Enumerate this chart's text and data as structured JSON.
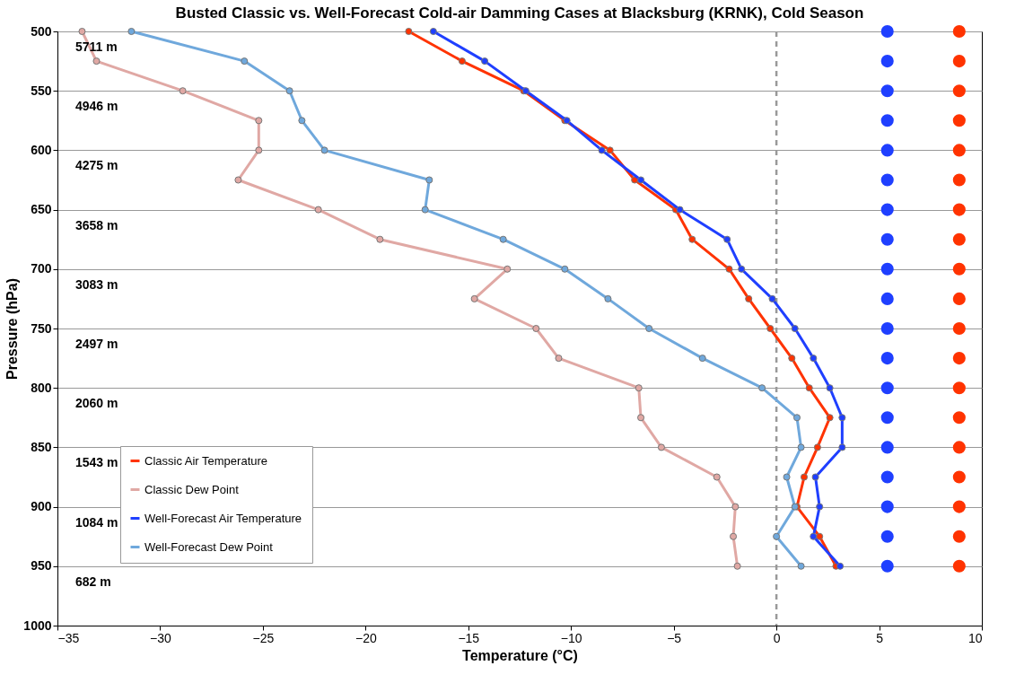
{
  "chart_data": {
    "type": "line",
    "title": "Busted Classic vs. Well-Forecast Cold-air Damming Cases at Blacksburg (KRNK), Cold Season",
    "xlabel": "Temperature (°C)",
    "ylabel": "Pressure (hPa)",
    "xlim": [
      -35,
      10
    ],
    "xticks": [
      -35,
      -30,
      -25,
      -20,
      -15,
      -10,
      -5,
      0,
      5,
      10
    ],
    "ylim": [
      1000,
      500
    ],
    "yticks": [
      500,
      550,
      600,
      650,
      700,
      750,
      800,
      850,
      900,
      950,
      1000
    ],
    "grid": "y",
    "legend": "bottom left",
    "marker": "circle",
    "line_style": "solid",
    "series": [
      {
        "name": "Classic Air Temperature",
        "color": "#ff3300",
        "x": [
          -17.9,
          -15.3,
          -12.3,
          -10.3,
          -8.1,
          -6.9,
          -4.9,
          -4.1,
          -2.3,
          -1.35,
          -0.3,
          0.75,
          1.6,
          2.6,
          2.0,
          1.35,
          1.0,
          2.1,
          2.9
        ],
        "values": [
          500,
          525,
          550,
          575,
          600,
          625,
          650,
          675,
          700,
          725,
          750,
          775,
          800,
          825,
          850,
          875,
          900,
          925,
          950
        ]
      },
      {
        "name": "Classic Dew Point",
        "color": "#e0a8a4",
        "x": [
          -33.8,
          -33.1,
          -28.9,
          -25.2,
          -25.2,
          -26.2,
          -22.3,
          -19.3,
          -13.1,
          -14.7,
          -11.7,
          -10.6,
          -6.7,
          -6.6,
          -5.6,
          -2.9,
          -2.0,
          -2.1,
          -1.9
        ],
        "values": [
          500,
          525,
          550,
          575,
          600,
          625,
          650,
          675,
          700,
          725,
          750,
          775,
          800,
          825,
          850,
          875,
          900,
          925,
          950
        ]
      },
      {
        "name": "Well-Forecast Air Temperature",
        "color": "#1f3fff",
        "x": [
          -16.7,
          -14.2,
          -12.2,
          -10.2,
          -8.5,
          -6.6,
          -4.7,
          -2.4,
          -1.7,
          -0.2,
          0.9,
          1.8,
          2.6,
          3.2,
          3.2,
          1.9,
          2.1,
          1.8,
          3.1
        ],
        "values": [
          500,
          525,
          550,
          575,
          600,
          625,
          650,
          675,
          700,
          725,
          750,
          775,
          800,
          825,
          850,
          875,
          900,
          925,
          950
        ]
      },
      {
        "name": "Well-Forecast Dew Point",
        "color": "#6fa8dc",
        "x": [
          -31.4,
          -25.9,
          -23.7,
          -23.1,
          -22.0,
          -16.9,
          -17.1,
          -13.3,
          -10.3,
          -8.2,
          -6.2,
          -3.6,
          -0.7,
          1.0,
          1.2,
          0.5,
          0.9,
          0.0,
          1.2
        ],
        "values": [
          500,
          525,
          550,
          575,
          600,
          625,
          650,
          675,
          700,
          725,
          750,
          775,
          800,
          825,
          850,
          875,
          900,
          925,
          950
        ]
      },
      {
        "type": "scatter",
        "color": "#1f3fff",
        "x": [
          5.4,
          5.4,
          5.4,
          5.4,
          5.4,
          5.4,
          5.4,
          5.4,
          5.4,
          5.4,
          5.4,
          5.4,
          5.4,
          5.4,
          5.4,
          5.4,
          5.4,
          5.4,
          5.4
        ],
        "values": [
          500,
          525,
          550,
          575,
          600,
          625,
          650,
          675,
          700,
          725,
          750,
          775,
          800,
          825,
          850,
          875,
          900,
          925,
          950
        ]
      },
      {
        "type": "scatter",
        "color": "#ff3300",
        "x": [
          8.9,
          8.9,
          8.9,
          8.9,
          8.9,
          8.9,
          8.9,
          8.9,
          8.9,
          8.9,
          8.9,
          8.9,
          8.9,
          8.9,
          8.9,
          8.9,
          8.9,
          8.9,
          8.9
        ],
        "values": [
          500,
          525,
          550,
          575,
          600,
          625,
          650,
          675,
          700,
          725,
          750,
          775,
          800,
          825,
          850,
          875,
          900,
          925,
          950
        ]
      }
    ],
    "ref_lines": [
      {
        "axis": "x",
        "value": 0,
        "color": "#999999",
        "line_style": "dashed"
      }
    ],
    "annotations": [
      "5711 m",
      "4946 m",
      "4275 m",
      "3658 m",
      "3083 m",
      "2497 m",
      "2060 m",
      "1543 m",
      "1084 m",
      "682 m"
    ]
  }
}
